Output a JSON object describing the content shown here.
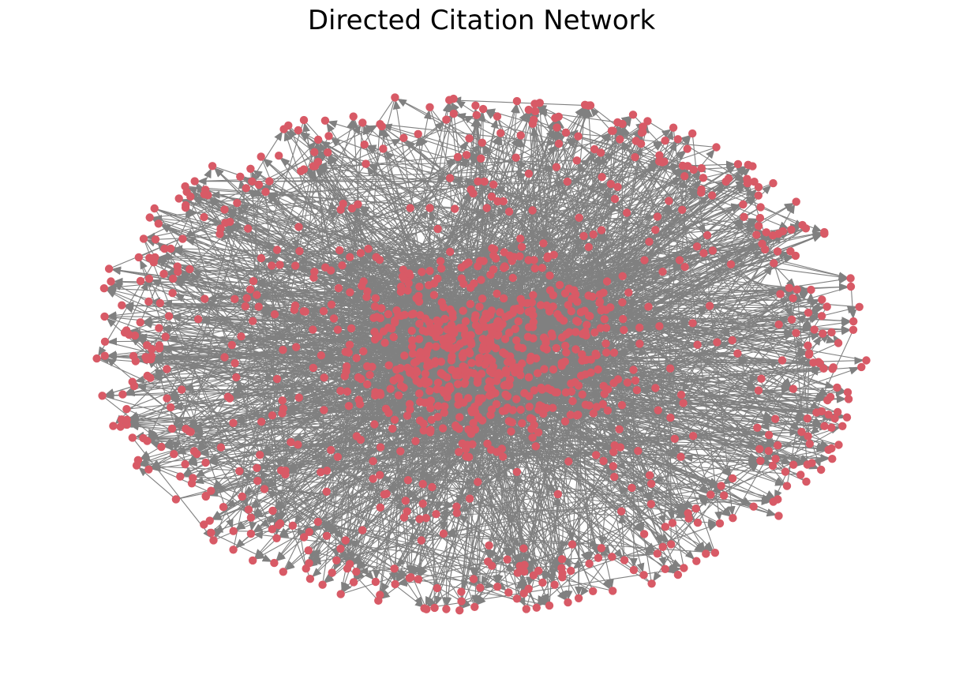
{
  "title": "Directed Citation Network",
  "graph": {
    "directed": true,
    "node_color": "#d85a66",
    "edge_color": "#808080",
    "layout": "dense core with radial periphery"
  }
}
